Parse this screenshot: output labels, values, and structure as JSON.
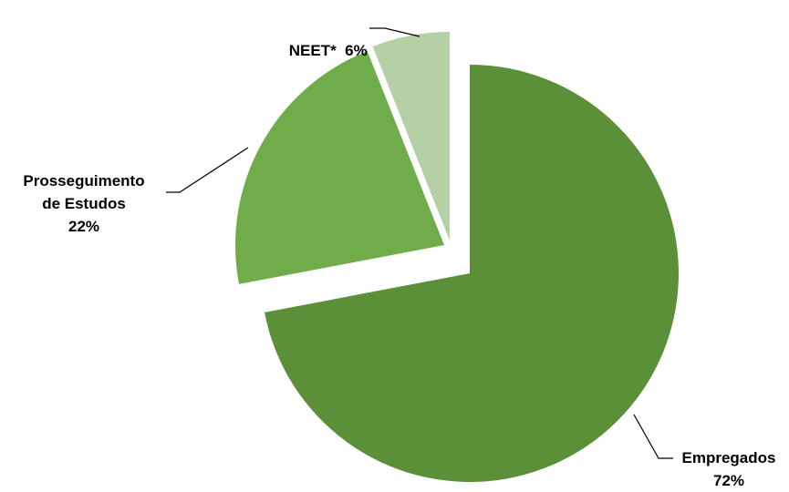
{
  "chart_data": {
    "type": "pie",
    "title": "",
    "exploded": true,
    "slices": [
      {
        "name": "Empregados",
        "value": 72,
        "value_label": "72%",
        "color": "#5b8f38"
      },
      {
        "name": "Prosseguimento de Estudos",
        "value": 22,
        "value_label": "22%",
        "color": "#70ac4a"
      },
      {
        "name": "NEET*",
        "value": 6,
        "value_label": "6%",
        "color": "#b5cfa6"
      }
    ],
    "labels": {
      "empregados": {
        "name": "Empregados",
        "value": "72%"
      },
      "estudos": {
        "line1": "Prosseguimento",
        "line2": "de Estudos",
        "value": "22%"
      },
      "neet": {
        "text": "NEET*  6%"
      }
    }
  }
}
